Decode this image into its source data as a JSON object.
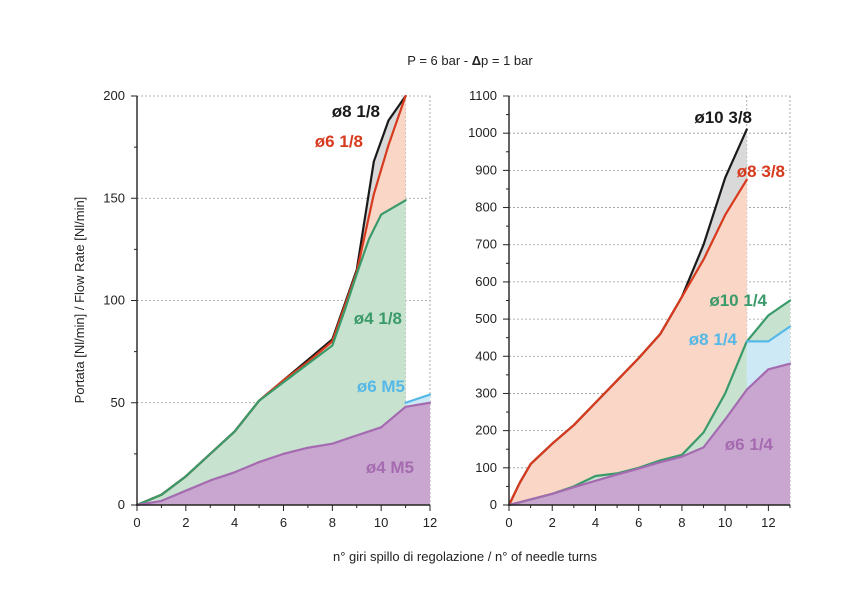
{
  "title_parts": {
    "before": "P = 6 bar - ",
    "delta": "Δ",
    "after": "p = 1 bar"
  },
  "xlabel": "n° giri spillo di regolazione / n° of needle turns",
  "ylabel": "Portata [Nl/min] / Flow Rate [Nl/min]",
  "colors": {
    "black": "#1a1a1a",
    "red": "#d83a1e",
    "green": "#3a9a6a",
    "blue": "#55b8e6",
    "purple": "#a56bb0"
  },
  "chart_data": [
    {
      "type": "area",
      "xlim": [
        0,
        12
      ],
      "ylim": [
        0,
        200
      ],
      "xticks": [
        0,
        2,
        4,
        6,
        8,
        10,
        12
      ],
      "yticks": [
        0,
        50,
        100,
        150,
        200
      ],
      "grid": "dashed",
      "series": [
        {
          "name": "ø8 1/8",
          "color": "#1a1a1a",
          "points": [
            [
              0,
              0
            ],
            [
              1,
              5
            ],
            [
              2,
              14
            ],
            [
              3,
              25
            ],
            [
              4,
              36
            ],
            [
              5,
              51
            ],
            [
              6,
              61
            ],
            [
              7,
              71
            ],
            [
              8,
              81
            ],
            [
              9,
              115
            ],
            [
              9.7,
              168
            ],
            [
              10.3,
              188
            ],
            [
              11,
              200
            ]
          ]
        },
        {
          "name": "ø6 1/8",
          "color": "#d83a1e",
          "points": [
            [
              0,
              0
            ],
            [
              1,
              5
            ],
            [
              2,
              14
            ],
            [
              3,
              25
            ],
            [
              4,
              36
            ],
            [
              5,
              51
            ],
            [
              6,
              61
            ],
            [
              7,
              70
            ],
            [
              8,
              80
            ],
            [
              9,
              114
            ],
            [
              9.7,
              152
            ],
            [
              10.3,
              176
            ],
            [
              11,
              200
            ]
          ]
        },
        {
          "name": "ø4 1/8",
          "color": "#3a9a6a",
          "points": [
            [
              0,
              0
            ],
            [
              1,
              5
            ],
            [
              2,
              14
            ],
            [
              3,
              25
            ],
            [
              4,
              36
            ],
            [
              5,
              51
            ],
            [
              6,
              60
            ],
            [
              7,
              69
            ],
            [
              8,
              78
            ],
            [
              8.5,
              95
            ],
            [
              9,
              113
            ],
            [
              9.5,
              130
            ],
            [
              10,
              142
            ],
            [
              11,
              149
            ]
          ]
        },
        {
          "name": "ø6 M5",
          "color": "#55b8e6",
          "points": [
            [
              11,
              50
            ],
            [
              12,
              54
            ]
          ]
        },
        {
          "name": "ø4 M5",
          "color": "#a56bb0",
          "points": [
            [
              0,
              0
            ],
            [
              1,
              2
            ],
            [
              2,
              7
            ],
            [
              3,
              12
            ],
            [
              4,
              16
            ],
            [
              5,
              21
            ],
            [
              6,
              25
            ],
            [
              7,
              28
            ],
            [
              8,
              30
            ],
            [
              9,
              34
            ],
            [
              10,
              38
            ],
            [
              11,
              48
            ],
            [
              12,
              50
            ]
          ]
        }
      ]
    },
    {
      "type": "area",
      "xlim": [
        0,
        13
      ],
      "ylim": [
        0,
        1100
      ],
      "xticks": [
        0,
        2,
        4,
        6,
        8,
        10,
        12
      ],
      "yticks": [
        0,
        100,
        200,
        300,
        400,
        500,
        600,
        700,
        800,
        900,
        1000,
        1100
      ],
      "grid": "dashed",
      "series": [
        {
          "name": "ø10 3/8",
          "color": "#1a1a1a",
          "points": [
            [
              0,
              0
            ],
            [
              0.5,
              60
            ],
            [
              1,
              110
            ],
            [
              2,
              165
            ],
            [
              3,
              215
            ],
            [
              4,
              275
            ],
            [
              5,
              335
            ],
            [
              6,
              395
            ],
            [
              7,
              460
            ],
            [
              8,
              560
            ],
            [
              9,
              700
            ],
            [
              10,
              880
            ],
            [
              11,
              1010
            ]
          ]
        },
        {
          "name": "ø8 3/8",
          "color": "#d83a1e",
          "points": [
            [
              0,
              0
            ],
            [
              0.5,
              60
            ],
            [
              1,
              110
            ],
            [
              2,
              165
            ],
            [
              3,
              215
            ],
            [
              4,
              275
            ],
            [
              5,
              335
            ],
            [
              6,
              395
            ],
            [
              7,
              460
            ],
            [
              8,
              560
            ],
            [
              9,
              660
            ],
            [
              10,
              780
            ],
            [
              11,
              875
            ]
          ]
        },
        {
          "name": "ø10 1/4",
          "color": "#3a9a6a",
          "points": [
            [
              0,
              0
            ],
            [
              1,
              15
            ],
            [
              2,
              30
            ],
            [
              3,
              50
            ],
            [
              4,
              78
            ],
            [
              5,
              85
            ],
            [
              6,
              100
            ],
            [
              7,
              120
            ],
            [
              8,
              135
            ],
            [
              9,
              195
            ],
            [
              10,
              300
            ],
            [
              11,
              440
            ],
            [
              12,
              510
            ],
            [
              13,
              550
            ]
          ]
        },
        {
          "name": "ø8 1/4",
          "color": "#55b8e6",
          "points": [
            [
              11,
              440
            ],
            [
              12,
              440
            ],
            [
              13,
              480
            ]
          ]
        },
        {
          "name": "ø6 1/4",
          "color": "#a56bb0",
          "points": [
            [
              0,
              0
            ],
            [
              1,
              15
            ],
            [
              2,
              30
            ],
            [
              3,
              48
            ],
            [
              4,
              65
            ],
            [
              5,
              82
            ],
            [
              6,
              98
            ],
            [
              7,
              115
            ],
            [
              8,
              130
            ],
            [
              9,
              155
            ],
            [
              10,
              230
            ],
            [
              11,
              310
            ],
            [
              12,
              365
            ],
            [
              13,
              380
            ]
          ]
        }
      ]
    }
  ]
}
